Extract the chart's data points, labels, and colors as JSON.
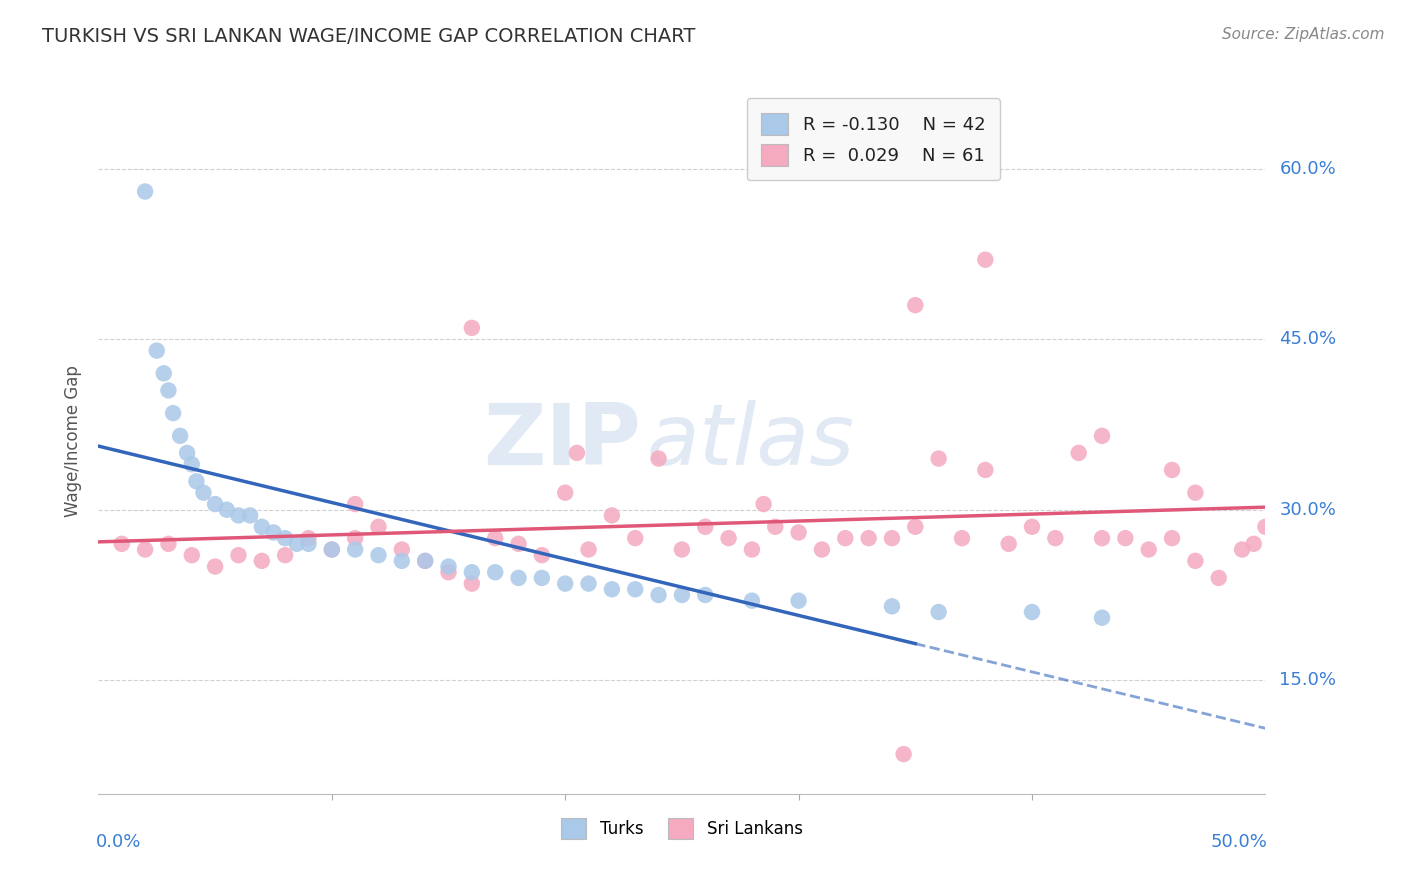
{
  "title": "TURKISH VS SRI LANKAN WAGE/INCOME GAP CORRELATION CHART",
  "source": "Source: ZipAtlas.com",
  "ylabel": "Wage/Income Gap",
  "y_ticks": [
    15.0,
    30.0,
    45.0,
    60.0
  ],
  "x_range": [
    0.0,
    50.0
  ],
  "y_range": [
    5.0,
    67.0
  ],
  "turks_R": "-0.130",
  "turks_N": "42",
  "srilankans_R": "0.029",
  "srilankans_N": "61",
  "turks_color": "#aac8e8",
  "turks_line_color": "#3366bb",
  "srilankans_color": "#f5aac0",
  "srilankans_line_color": "#e05878",
  "turks_x": [
    2.0,
    2.5,
    2.8,
    3.0,
    3.2,
    3.5,
    3.8,
    4.0,
    4.2,
    4.5,
    5.0,
    5.5,
    6.0,
    6.5,
    7.0,
    7.5,
    8.0,
    8.5,
    9.0,
    10.0,
    11.0,
    12.0,
    13.0,
    14.0,
    15.0,
    16.0,
    17.0,
    18.0,
    19.0,
    20.0,
    21.0,
    22.0,
    23.0,
    24.0,
    25.0,
    26.0,
    28.0,
    30.0,
    34.0,
    36.0,
    40.0,
    43.0
  ],
  "turks_y": [
    58.0,
    44.0,
    42.0,
    40.5,
    38.5,
    36.5,
    35.0,
    34.0,
    32.5,
    31.5,
    30.5,
    30.0,
    29.5,
    29.5,
    28.5,
    28.0,
    27.5,
    27.0,
    27.0,
    26.5,
    26.5,
    26.0,
    25.5,
    25.5,
    25.0,
    24.5,
    24.5,
    24.0,
    24.0,
    23.5,
    23.5,
    23.0,
    23.0,
    22.5,
    22.5,
    22.5,
    22.0,
    22.0,
    21.5,
    21.0,
    21.0,
    20.5
  ],
  "srilankans_x": [
    1.0,
    2.0,
    3.0,
    4.0,
    5.0,
    6.0,
    7.0,
    8.0,
    9.0,
    10.0,
    11.0,
    12.0,
    13.0,
    14.0,
    15.0,
    16.0,
    17.0,
    18.0,
    19.0,
    20.0,
    21.0,
    22.0,
    23.0,
    24.0,
    25.0,
    26.0,
    27.0,
    28.0,
    29.0,
    30.0,
    31.0,
    32.0,
    33.0,
    34.0,
    35.0,
    36.0,
    37.0,
    38.0,
    39.0,
    40.0,
    41.0,
    42.0,
    43.0,
    44.0,
    45.0,
    46.0,
    47.0,
    48.0,
    49.0,
    50.0,
    35.0,
    38.0,
    43.0,
    46.0,
    11.0,
    16.0,
    20.5,
    28.5,
    34.5,
    47.0,
    49.5
  ],
  "srilankans_y": [
    27.0,
    26.5,
    27.0,
    26.0,
    25.0,
    26.0,
    25.5,
    26.0,
    27.5,
    26.5,
    30.5,
    28.5,
    26.5,
    25.5,
    24.5,
    23.5,
    27.5,
    27.0,
    26.0,
    31.5,
    26.5,
    29.5,
    27.5,
    34.5,
    26.5,
    28.5,
    27.5,
    26.5,
    28.5,
    28.0,
    26.5,
    27.5,
    27.5,
    27.5,
    28.5,
    34.5,
    27.5,
    33.5,
    27.0,
    28.5,
    27.5,
    35.0,
    27.5,
    27.5,
    26.5,
    27.5,
    25.5,
    24.0,
    26.5,
    28.5,
    48.0,
    52.0,
    36.5,
    33.5,
    27.5,
    46.0,
    35.0,
    30.5,
    8.5,
    31.5,
    27.0
  ],
  "watermark_part1": "ZIP",
  "watermark_part2": "atlas",
  "background_color": "#ffffff",
  "grid_color": "#cccccc",
  "legend_label_turks": "R = -0.130    N = 42",
  "legend_label_sl": "R =  0.029    N = 61"
}
